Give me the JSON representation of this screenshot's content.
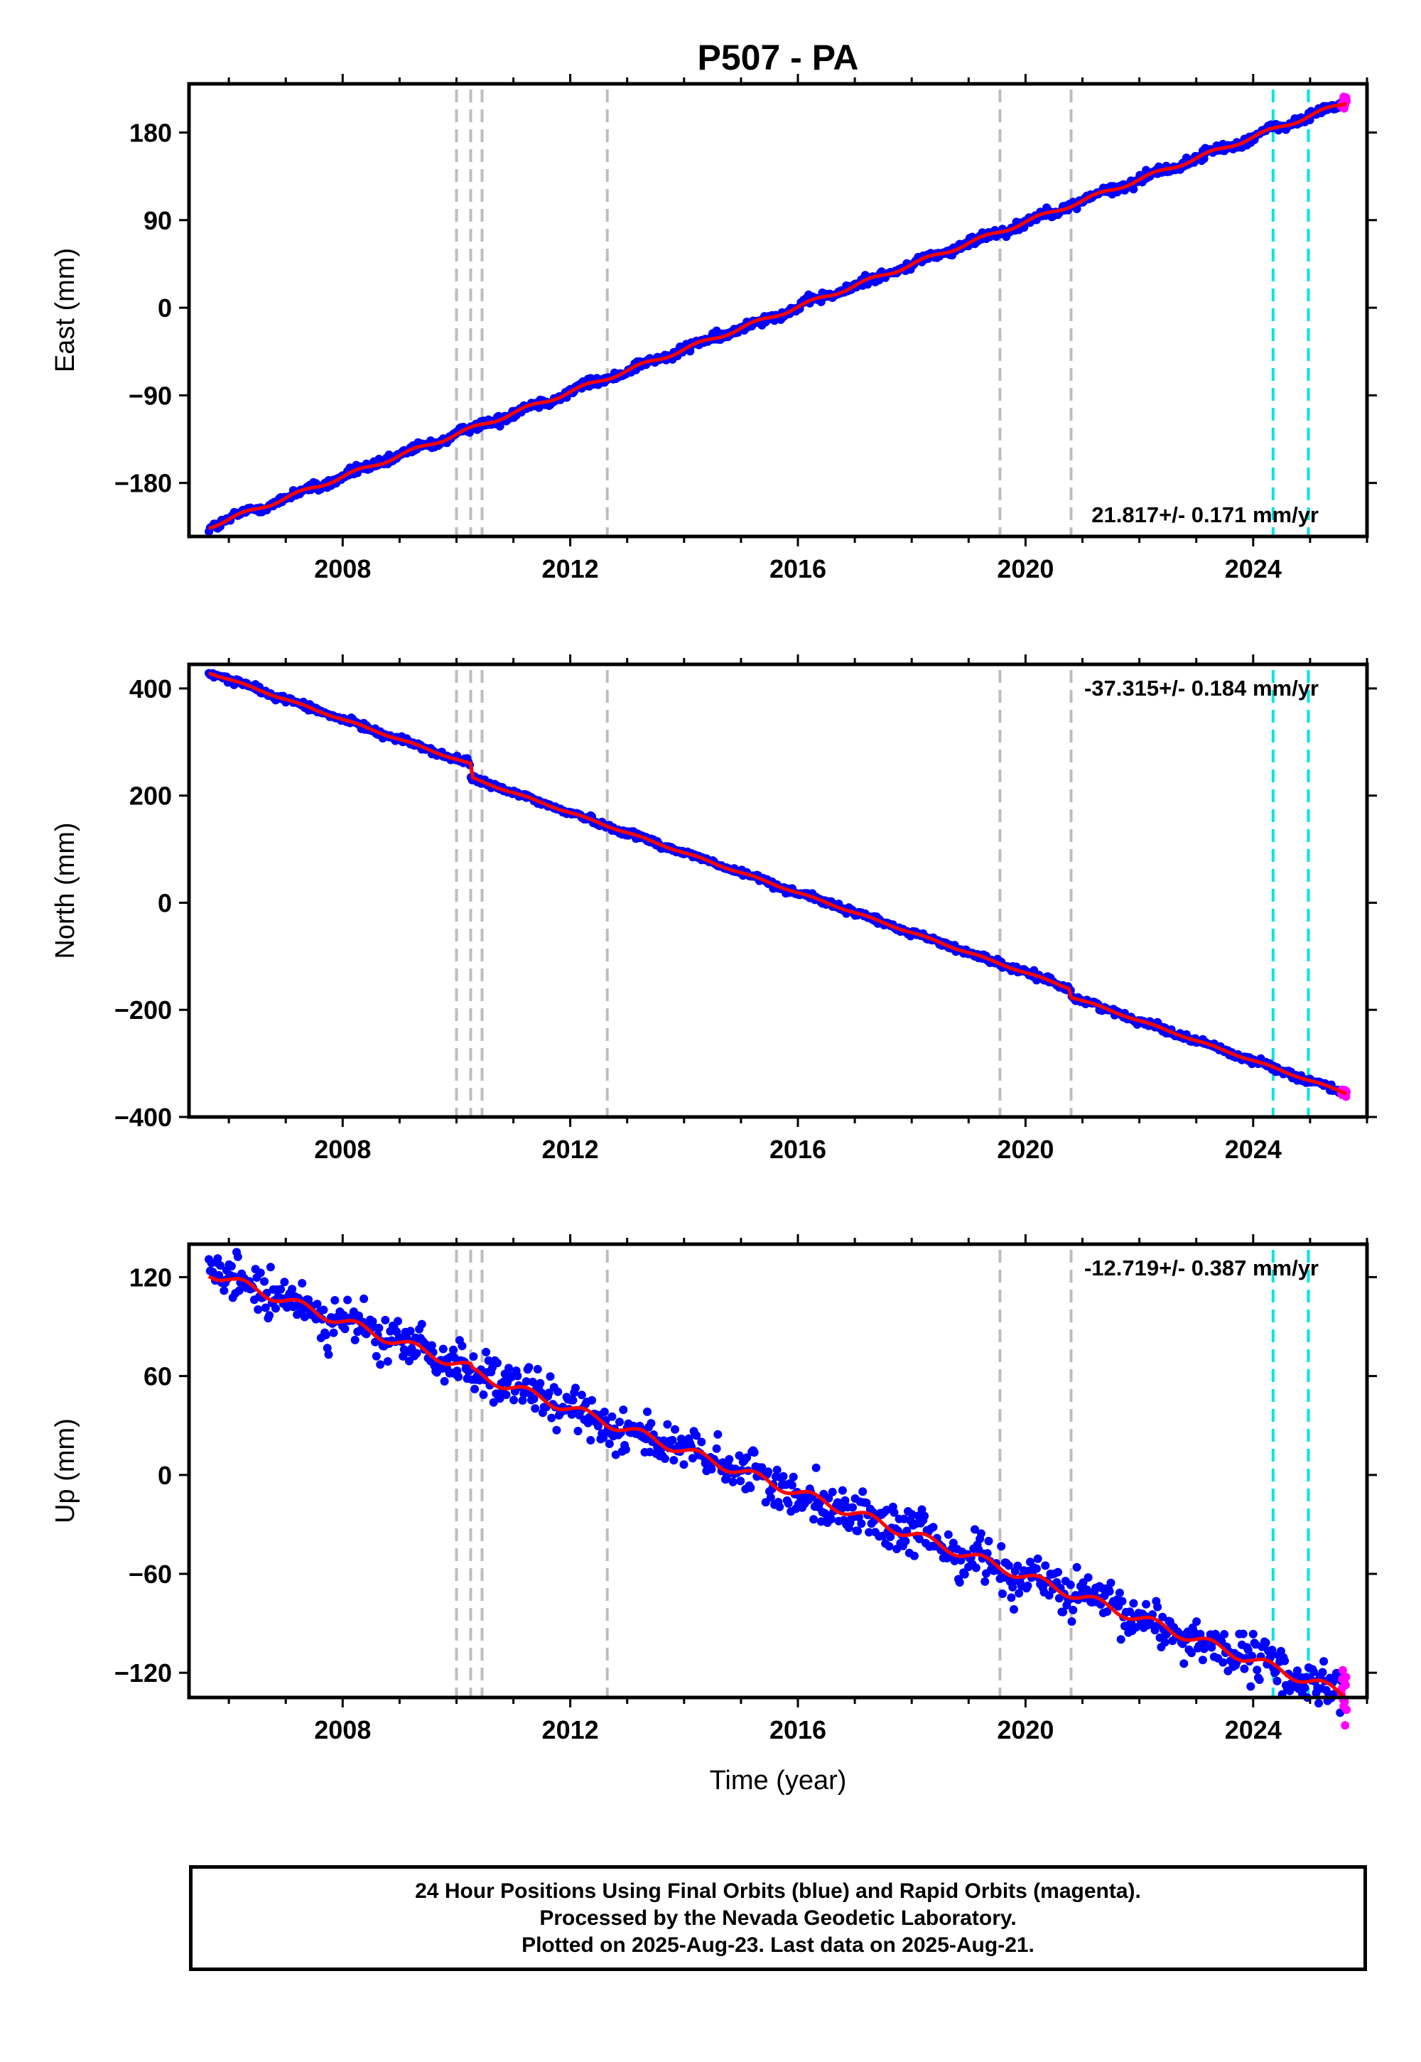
{
  "chart_data": {
    "title": "P507 - PA",
    "type": "scatter",
    "xlabel": "Time (year)",
    "xlim": [
      2005.3,
      2026.0
    ],
    "xticks": [
      2008,
      2012,
      2016,
      2020,
      2024
    ],
    "data_start": 2005.65,
    "data_end": 2025.64,
    "rapid_start": 2025.55,
    "gray_event_lines": [
      2010.0,
      2010.25,
      2010.45,
      2012.65,
      2019.55,
      2020.8
    ],
    "cyan_event_lines": [
      2024.35,
      2024.97
    ],
    "colors": {
      "final": "#0000ff",
      "rapid": "#ff00ff",
      "model": "#ff0000",
      "gray": "#bdbdbd",
      "cyan": "#00e5e5"
    },
    "panels": [
      {
        "ylabel": "East (mm)",
        "ylim": [
          -235,
          230
        ],
        "yticks": [
          180,
          90,
          0,
          -90,
          -180
        ],
        "ytick_labels": [
          "180",
          "90",
          "0",
          "−90",
          "−180"
        ],
        "rate_label": "21.817+/- 0.171 mm/yr",
        "rate_position": "bottom-right",
        "trend": {
          "start": -225,
          "rate": 21.817,
          "seasonal": 2.0,
          "noise": 2.5,
          "offsets": []
        }
      },
      {
        "ylabel": "North (mm)",
        "ylim": [
          -400,
          445
        ],
        "yticks": [
          400,
          200,
          0,
          -200,
          -400
        ],
        "ytick_labels": [
          "400",
          "200",
          "0",
          "−200",
          "−400"
        ],
        "rate_label": "-37.315+/- 0.184 mm/yr",
        "rate_position": "top-right",
        "trend": {
          "start": 430,
          "rate": -37.315,
          "seasonal": 1.5,
          "noise": 3.0,
          "offsets": [
            {
              "t": 2010.25,
              "d": -25
            },
            {
              "t": 2020.8,
              "d": -15
            }
          ]
        }
      },
      {
        "ylabel": "Up (mm)",
        "ylim": [
          -135,
          140
        ],
        "yticks": [
          120,
          60,
          0,
          -60,
          -120
        ],
        "ytick_labels": [
          "120",
          "60",
          "0",
          "−60",
          "−120"
        ],
        "rate_label": "-12.719+/- 0.387 mm/yr",
        "rate_position": "top-right",
        "trend": {
          "start": 123,
          "rate": -12.719,
          "seasonal": 3.0,
          "noise": 7.0,
          "offsets": [
            {
              "t": 2010.25,
              "d": -2
            }
          ]
        }
      }
    ]
  },
  "footer": {
    "line1": "24 Hour Positions Using Final Orbits (blue) and Rapid Orbits (magenta).",
    "line2": "Processed by the Nevada Geodetic Laboratory.",
    "line3": "Plotted on 2025-Aug-23. Last data on 2025-Aug-21."
  }
}
